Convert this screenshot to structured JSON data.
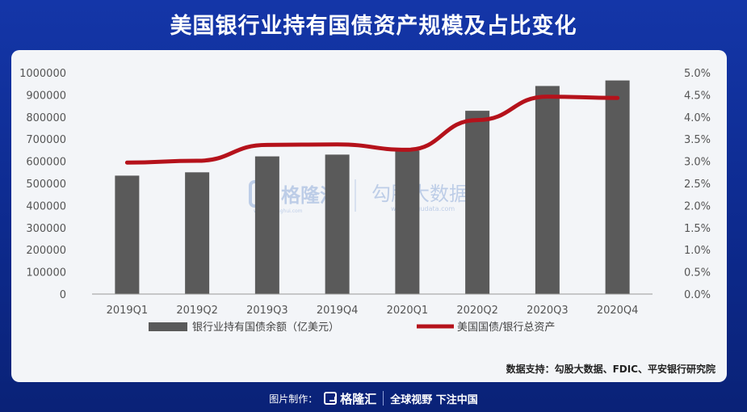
{
  "header": {
    "title": "美国银行业持有国债资产规模及占比变化"
  },
  "chart_data": {
    "type": "bar+line",
    "categories": [
      "2019Q1",
      "2019Q2",
      "2019Q3",
      "2019Q4",
      "2020Q1",
      "2020Q2",
      "2020Q3",
      "2020Q4"
    ],
    "series": [
      {
        "name": "银行业持有国债余额（亿美元）",
        "type": "bar",
        "axis": "left",
        "values": [
          535000,
          550000,
          622000,
          630000,
          648000,
          828000,
          940000,
          965000
        ]
      },
      {
        "name": "美国国债/银行总资产",
        "type": "line",
        "axis": "right",
        "values": [
          0.0297,
          0.0301,
          0.0337,
          0.0338,
          0.0326,
          0.0393,
          0.0446,
          0.0443
        ]
      }
    ],
    "y_left": {
      "min": 0,
      "max": 1000000,
      "step": 100000,
      "ticks": [
        "0",
        "100000",
        "200000",
        "300000",
        "400000",
        "500000",
        "600000",
        "700000",
        "800000",
        "900000",
        "1000000"
      ]
    },
    "y_right": {
      "min": 0,
      "max": 0.05,
      "step": 0.005,
      "ticks": [
        "0.0%",
        "0.5%",
        "1.0%",
        "1.5%",
        "2.0%",
        "2.5%",
        "3.0%",
        "3.5%",
        "4.0%",
        "4.5%",
        "5.0%"
      ]
    },
    "grid": false,
    "legend_position": "bottom",
    "colors": {
      "bar": "#5a5a5a",
      "line": "#b5121b"
    }
  },
  "watermark": {
    "brand1": "格隆汇",
    "brand1_url": "www.gelonghui.com",
    "brand2": "勾股大数据",
    "brand2_url": "www.gogudata.com"
  },
  "source_text": "数据支持：勾股大数据、FDIC、平安银行研究院",
  "footer": {
    "made_by": "图片制作：",
    "brand": "格隆汇",
    "slogan": "全球视野 下注中国"
  }
}
